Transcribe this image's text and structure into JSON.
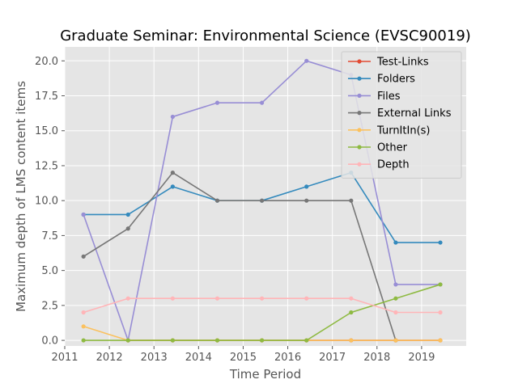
{
  "chart_data": {
    "type": "line",
    "title": "Graduate Seminar: Environmental Science (EVSC90019)",
    "xlabel": "Time Period",
    "ylabel": "Maximum depth of LMS content items",
    "xlim": [
      2011,
      2020
    ],
    "ylim": [
      -0.4,
      21
    ],
    "x_ticks": [
      2011,
      2012,
      2013,
      2014,
      2015,
      2016,
      2017,
      2018,
      2019
    ],
    "y_ticks": [
      0.0,
      2.5,
      5.0,
      7.5,
      10.0,
      12.5,
      15.0,
      17.5,
      20.0
    ],
    "x": [
      2011.42,
      2012.42,
      2013.42,
      2014.42,
      2015.42,
      2016.42,
      2017.42,
      2018.42,
      2019.42
    ],
    "legend_position": "top-right",
    "grid": true,
    "background": "#e5e5e5",
    "series": [
      {
        "name": "Test-Links",
        "color": "#e24a33",
        "values": [
          null,
          0,
          0,
          0,
          0,
          0,
          0,
          0,
          0
        ]
      },
      {
        "name": "Folders",
        "color": "#348abd",
        "values": [
          9,
          9,
          11,
          10,
          10,
          11,
          12,
          7,
          7
        ]
      },
      {
        "name": "Files",
        "color": "#988ed5",
        "values": [
          9,
          0,
          16,
          17,
          17,
          20,
          19,
          4,
          4
        ]
      },
      {
        "name": "External Links",
        "color": "#777777",
        "values": [
          6,
          8,
          12,
          10,
          10,
          10,
          10,
          0,
          null
        ]
      },
      {
        "name": "TurnItIn(s)",
        "color": "#fbc15e",
        "values": [
          1,
          0,
          0,
          0,
          0,
          0,
          0,
          0,
          0
        ]
      },
      {
        "name": "Other",
        "color": "#8eba42",
        "values": [
          0,
          0,
          0,
          0,
          0,
          0,
          2,
          3,
          4
        ]
      },
      {
        "name": "Depth",
        "color": "#ffb5b8",
        "values": [
          2,
          3,
          3,
          3,
          3,
          3,
          3,
          2,
          2
        ]
      }
    ]
  }
}
